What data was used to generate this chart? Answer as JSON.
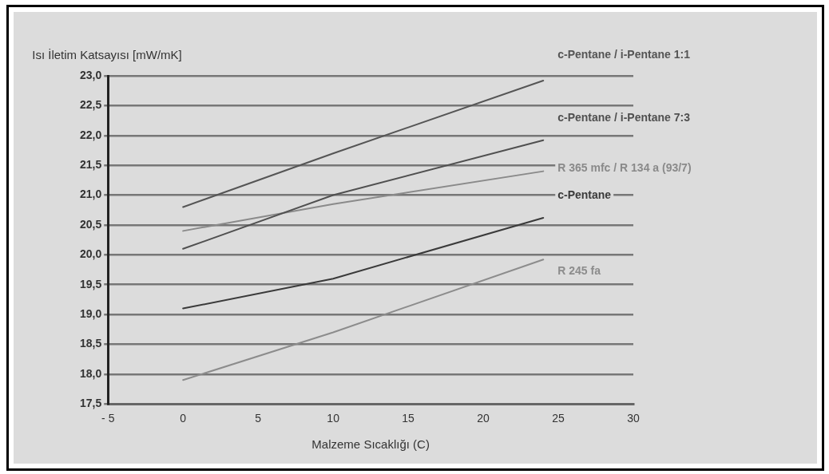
{
  "chart_data": {
    "type": "line",
    "xlabel": "Malzeme Sıcaklığı (C)",
    "ylabel": "Isı İletim Katsayısı [mW/mK]",
    "x": [
      0,
      10,
      24
    ],
    "series": [
      {
        "name": "c-Pentane / i-Pentane 1:1",
        "color": "#555555",
        "values": [
          20.8,
          21.7,
          22.92
        ]
      },
      {
        "name": "c-Pentane / i-Pentane 7:3",
        "color": "#505050",
        "values": [
          20.1,
          21.0,
          21.92
        ]
      },
      {
        "name": "R 365 mfc / R 134 a (93/7)",
        "color": "#8a8a8a",
        "values": [
          20.4,
          20.85,
          21.4
        ]
      },
      {
        "name": "c-Pentane",
        "color": "#3a3a3a",
        "values": [
          19.1,
          19.6,
          20.62
        ]
      },
      {
        "name": "R 245 fa",
        "color": "#8c8c8c",
        "values": [
          17.9,
          18.7,
          19.92
        ]
      }
    ],
    "xlim": [
      -5,
      30
    ],
    "xticks": [
      {
        "value": -5,
        "label": "- 5"
      },
      0,
      5,
      10,
      15,
      20,
      25,
      30
    ],
    "ylim": [
      17.5,
      23
    ],
    "yticks": [
      {
        "value": 17.5,
        "label": "17,5"
      },
      {
        "value": 18,
        "label": "18,0"
      },
      {
        "value": 18.5,
        "label": "18,5"
      },
      {
        "value": 19,
        "label": "19,0"
      },
      {
        "value": 19.5,
        "label": "19,5"
      },
      {
        "value": 20,
        "label": "20,0"
      },
      {
        "value": 20.5,
        "label": "20,5"
      },
      {
        "value": 21,
        "label": "21,0"
      },
      {
        "value": 21.5,
        "label": "21,5"
      },
      {
        "value": 22,
        "label": "22,0"
      },
      {
        "value": 22.5,
        "label": "22,5"
      },
      {
        "value": 23,
        "label": "23,0"
      }
    ],
    "grid": "y",
    "legend": false,
    "marker": "none",
    "line_style": "solid"
  }
}
